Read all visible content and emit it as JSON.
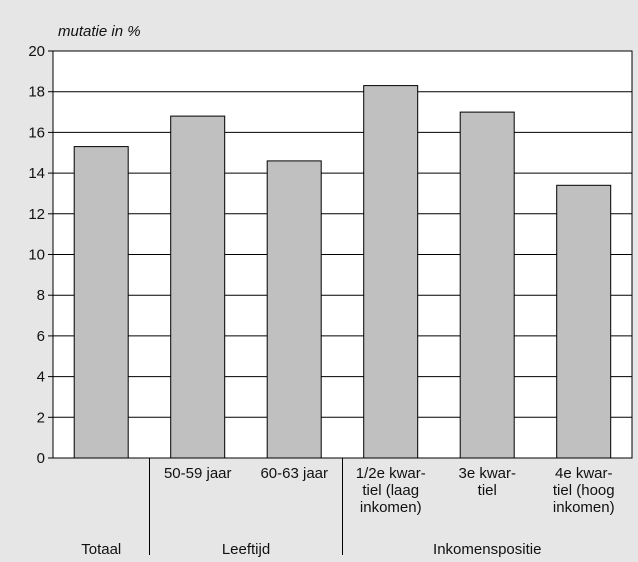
{
  "chart_data": {
    "type": "bar",
    "ylabel": "mutatie in %",
    "ylim": [
      0,
      20
    ],
    "yticks": [
      0,
      2,
      4,
      6,
      8,
      10,
      12,
      14,
      16,
      18,
      20
    ],
    "grid": true,
    "categories": [
      [
        "Totaal"
      ],
      [
        "50-59 jaar"
      ],
      [
        "60-63 jaar"
      ],
      [
        "1/2e kwar-",
        "tiel (laag",
        "inkomen)"
      ],
      [
        "3e kwar-",
        "tiel"
      ],
      [
        "4e kwar-",
        "tiel (hoog",
        "inkomen)"
      ]
    ],
    "values": [
      15.3,
      16.8,
      14.6,
      18.3,
      17.0,
      13.4
    ],
    "groups": [
      {
        "label": "Totaal",
        "span": [
          0,
          0
        ]
      },
      {
        "label": "Leeftijd",
        "span": [
          1,
          2
        ]
      },
      {
        "label": "Inkomenspositie",
        "span": [
          3,
          5
        ]
      }
    ]
  }
}
